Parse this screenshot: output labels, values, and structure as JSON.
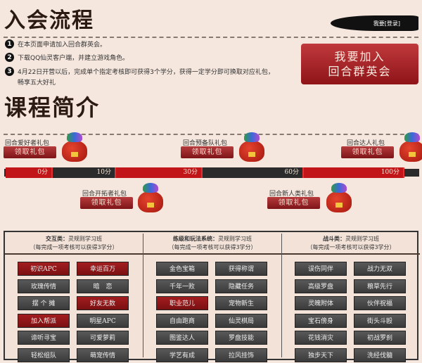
{
  "header": {
    "title": "入会流程",
    "login_label": "我要[登录]",
    "join_button": [
      "我要加入",
      "回合群英会"
    ]
  },
  "steps": [
    {
      "num": "1",
      "text": "在本页面申请加入回合群英会。"
    },
    {
      "num": "2",
      "text": "下载QQ仙灵客户端，并建立游戏角色。"
    },
    {
      "num": "3",
      "text": "4月22日开营以后，完成单个指定考核即可获得3个学分，获得一定学分即可换取对应礼包，",
      "text2": "畅享五大好礼"
    }
  ],
  "course": {
    "title": "课程简介"
  },
  "gifts": [
    {
      "name": "回合爱好者礼包",
      "button": "领取礼包"
    },
    {
      "name": "回合开拓者礼包",
      "button": "领取礼包"
    },
    {
      "name": "回合预备队礼包",
      "button": "领取礼包"
    },
    {
      "name": "回合新人类礼包",
      "button": "领取礼包"
    },
    {
      "name": "回合达人礼包",
      "button": "领取礼包"
    }
  ],
  "timeline": [
    "0分",
    "10分",
    "30分",
    "60分",
    "100分"
  ],
  "columns": [
    {
      "title": "交互类：",
      "subtitle": "灵规则学习班",
      "note": "（每完成一项考核可以获得3学分）",
      "items": [
        [
          "初识APC",
          "幸运百万"
        ],
        [
          "玫瑰传情",
          "暗　恋"
        ],
        [
          "摆 个 摊",
          "好友无数"
        ],
        [
          "加入帮派",
          "明星APC"
        ],
        [
          "谛听寻宝",
          "可爱萝莉"
        ],
        [
          "轻松组队",
          "萌宠传情"
        ]
      ],
      "active": [
        [
          true,
          true
        ],
        [
          false,
          false
        ],
        [
          false,
          true
        ],
        [
          true,
          false
        ],
        [
          false,
          false
        ],
        [
          false,
          false
        ]
      ]
    },
    {
      "title": "练级和玩法系统：",
      "subtitle": "灵规则学习班",
      "note": "（每完成一项考核可以获得3学分）",
      "items": [
        [
          "金色宝箱",
          "获得称谓"
        ],
        [
          "千年一败",
          "隐藏任务"
        ],
        [
          "职业范儿",
          "宠物新生"
        ],
        [
          "自由跑商",
          "仙灵棋局"
        ],
        [
          "图鉴达人",
          "罗盘技能"
        ],
        [
          "学艺有成",
          "拉风挂饰"
        ]
      ],
      "active": [
        [
          false,
          false
        ],
        [
          false,
          false
        ],
        [
          true,
          false
        ],
        [
          false,
          false
        ],
        [
          false,
          false
        ],
        [
          false,
          false
        ]
      ]
    },
    {
      "title": "战斗类：",
      "subtitle": "灵规则学习班",
      "note": "（每完成一项考核可以获得3学分）",
      "items": [
        [
          "误伤同伴",
          "战力无双"
        ],
        [
          "高级罗盘",
          "粮草先行"
        ],
        [
          "灵魄附体",
          "伙伴祝福"
        ],
        [
          "宝石傍身",
          "街头斗殴"
        ],
        [
          "花钱消灾",
          "初战罗刹"
        ],
        [
          "独步天下",
          "洗经伐髓"
        ]
      ],
      "active": [
        [
          false,
          false
        ],
        [
          false,
          false
        ],
        [
          false,
          false
        ],
        [
          false,
          false
        ],
        [
          false,
          false
        ],
        [
          false,
          false
        ]
      ]
    }
  ],
  "colors": {
    "red": "#9e1a1d",
    "dark": "#3f3f3f",
    "timeline_red": "#c2151a",
    "timeline_black": "#2b2b2b"
  }
}
